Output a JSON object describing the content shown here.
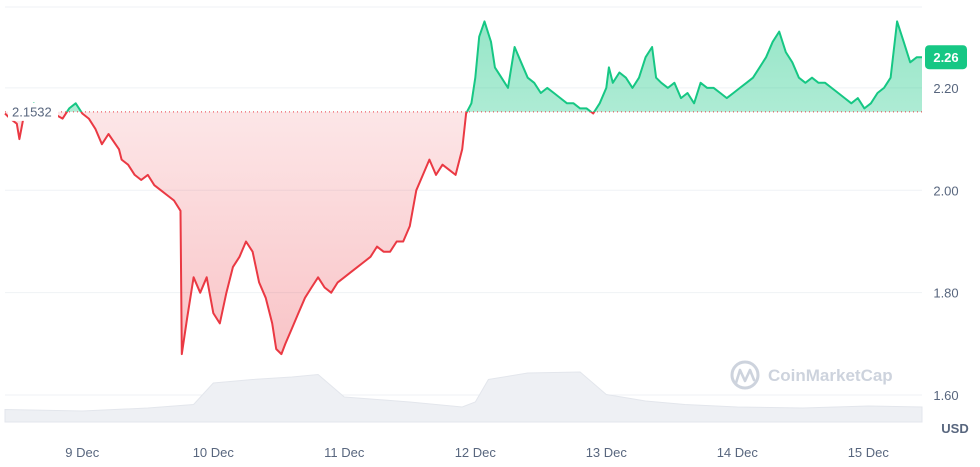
{
  "chart_data": {
    "type": "line",
    "baseline": 2.1532,
    "baseline_label": "2.1532",
    "current_value": 2.26,
    "current_label": "2.26",
    "currency_label": "USD",
    "watermark": "CoinMarketCap",
    "y_ticks": [
      {
        "value": 2.2,
        "label": "2.20"
      },
      {
        "value": 2.0,
        "label": "2.00"
      },
      {
        "value": 1.8,
        "label": "1.80"
      },
      {
        "value": 1.6,
        "label": "1.60"
      }
    ],
    "x_ticks": [
      {
        "day": 9,
        "label": "9 Dec"
      },
      {
        "day": 10,
        "label": "10 Dec"
      },
      {
        "day": 11,
        "label": "11 Dec"
      },
      {
        "day": 12,
        "label": "12 Dec"
      },
      {
        "day": 13,
        "label": "13 Dec"
      },
      {
        "day": 14,
        "label": "14 Dec"
      },
      {
        "day": 15,
        "label": "15 Dec"
      }
    ],
    "ylim": [
      1.52,
      2.36
    ],
    "x_range_days": [
      8.41,
      15.41
    ],
    "series": [
      {
        "points": [
          [
            8.41,
            2.15
          ],
          [
            8.45,
            2.14
          ],
          [
            8.5,
            2.13
          ],
          [
            8.52,
            2.1
          ],
          [
            8.55,
            2.14
          ],
          [
            8.6,
            2.16
          ],
          [
            8.63,
            2.17
          ],
          [
            8.7,
            2.14
          ],
          [
            8.78,
            2.15
          ],
          [
            8.85,
            2.14
          ],
          [
            8.9,
            2.16
          ],
          [
            8.95,
            2.17
          ],
          [
            9.0,
            2.15
          ],
          [
            9.05,
            2.14
          ],
          [
            9.1,
            2.12
          ],
          [
            9.15,
            2.09
          ],
          [
            9.2,
            2.11
          ],
          [
            9.28,
            2.08
          ],
          [
            9.3,
            2.06
          ],
          [
            9.35,
            2.05
          ],
          [
            9.4,
            2.03
          ],
          [
            9.45,
            2.02
          ],
          [
            9.5,
            2.03
          ],
          [
            9.55,
            2.01
          ],
          [
            9.6,
            2.0
          ],
          [
            9.65,
            1.99
          ],
          [
            9.7,
            1.98
          ],
          [
            9.75,
            1.96
          ],
          [
            9.76,
            1.68
          ],
          [
            9.8,
            1.75
          ],
          [
            9.85,
            1.83
          ],
          [
            9.9,
            1.8
          ],
          [
            9.95,
            1.83
          ],
          [
            10.0,
            1.76
          ],
          [
            10.05,
            1.74
          ],
          [
            10.1,
            1.8
          ],
          [
            10.15,
            1.85
          ],
          [
            10.2,
            1.87
          ],
          [
            10.25,
            1.9
          ],
          [
            10.3,
            1.88
          ],
          [
            10.35,
            1.82
          ],
          [
            10.4,
            1.79
          ],
          [
            10.45,
            1.74
          ],
          [
            10.48,
            1.69
          ],
          [
            10.52,
            1.68
          ],
          [
            10.55,
            1.7
          ],
          [
            10.6,
            1.73
          ],
          [
            10.65,
            1.76
          ],
          [
            10.7,
            1.79
          ],
          [
            10.75,
            1.81
          ],
          [
            10.8,
            1.83
          ],
          [
            10.85,
            1.81
          ],
          [
            10.9,
            1.8
          ],
          [
            10.95,
            1.82
          ],
          [
            11.0,
            1.83
          ],
          [
            11.05,
            1.84
          ],
          [
            11.1,
            1.85
          ],
          [
            11.15,
            1.86
          ],
          [
            11.2,
            1.87
          ],
          [
            11.25,
            1.89
          ],
          [
            11.3,
            1.88
          ],
          [
            11.35,
            1.88
          ],
          [
            11.4,
            1.9
          ],
          [
            11.45,
            1.9
          ],
          [
            11.5,
            1.93
          ],
          [
            11.55,
            2.0
          ],
          [
            11.6,
            2.03
          ],
          [
            11.65,
            2.06
          ],
          [
            11.7,
            2.03
          ],
          [
            11.75,
            2.05
          ],
          [
            11.8,
            2.04
          ],
          [
            11.85,
            2.03
          ],
          [
            11.9,
            2.08
          ],
          [
            11.93,
            2.15
          ],
          [
            11.97,
            2.17
          ],
          [
            12.0,
            2.22
          ],
          [
            12.03,
            2.3
          ],
          [
            12.07,
            2.33
          ],
          [
            12.12,
            2.29
          ],
          [
            12.15,
            2.24
          ],
          [
            12.2,
            2.22
          ],
          [
            12.25,
            2.2
          ],
          [
            12.3,
            2.28
          ],
          [
            12.35,
            2.25
          ],
          [
            12.4,
            2.22
          ],
          [
            12.45,
            2.21
          ],
          [
            12.5,
            2.19
          ],
          [
            12.55,
            2.2
          ],
          [
            12.6,
            2.19
          ],
          [
            12.65,
            2.18
          ],
          [
            12.7,
            2.17
          ],
          [
            12.75,
            2.17
          ],
          [
            12.8,
            2.16
          ],
          [
            12.85,
            2.16
          ],
          [
            12.9,
            2.15
          ],
          [
            12.95,
            2.17
          ],
          [
            13.0,
            2.2
          ],
          [
            13.02,
            2.24
          ],
          [
            13.05,
            2.21
          ],
          [
            13.1,
            2.23
          ],
          [
            13.15,
            2.22
          ],
          [
            13.2,
            2.2
          ],
          [
            13.25,
            2.22
          ],
          [
            13.3,
            2.26
          ],
          [
            13.35,
            2.28
          ],
          [
            13.38,
            2.22
          ],
          [
            13.42,
            2.21
          ],
          [
            13.47,
            2.2
          ],
          [
            13.52,
            2.21
          ],
          [
            13.57,
            2.18
          ],
          [
            13.62,
            2.19
          ],
          [
            13.67,
            2.17
          ],
          [
            13.72,
            2.21
          ],
          [
            13.77,
            2.2
          ],
          [
            13.82,
            2.2
          ],
          [
            13.87,
            2.19
          ],
          [
            13.92,
            2.18
          ],
          [
            13.97,
            2.19
          ],
          [
            14.02,
            2.2
          ],
          [
            14.07,
            2.21
          ],
          [
            14.12,
            2.22
          ],
          [
            14.17,
            2.24
          ],
          [
            14.22,
            2.26
          ],
          [
            14.27,
            2.29
          ],
          [
            14.32,
            2.31
          ],
          [
            14.37,
            2.27
          ],
          [
            14.42,
            2.25
          ],
          [
            14.47,
            2.22
          ],
          [
            14.52,
            2.21
          ],
          [
            14.57,
            2.22
          ],
          [
            14.62,
            2.21
          ],
          [
            14.67,
            2.21
          ],
          [
            14.72,
            2.2
          ],
          [
            14.77,
            2.19
          ],
          [
            14.82,
            2.18
          ],
          [
            14.87,
            2.17
          ],
          [
            14.92,
            2.18
          ],
          [
            14.97,
            2.16
          ],
          [
            15.02,
            2.17
          ],
          [
            15.07,
            2.19
          ],
          [
            15.12,
            2.2
          ],
          [
            15.17,
            2.22
          ],
          [
            15.22,
            2.33
          ],
          [
            15.27,
            2.29
          ],
          [
            15.32,
            2.25
          ],
          [
            15.37,
            2.26
          ],
          [
            15.41,
            2.26
          ]
        ]
      }
    ],
    "volume_profile": [
      [
        8.41,
        0.25
      ],
      [
        9.0,
        0.22
      ],
      [
        9.5,
        0.28
      ],
      [
        9.85,
        0.35
      ],
      [
        10.0,
        0.78
      ],
      [
        10.3,
        0.85
      ],
      [
        10.6,
        0.9
      ],
      [
        10.8,
        0.95
      ],
      [
        11.0,
        0.5
      ],
      [
        11.5,
        0.4
      ],
      [
        11.9,
        0.3
      ],
      [
        12.0,
        0.4
      ],
      [
        12.1,
        0.85
      ],
      [
        12.4,
        0.98
      ],
      [
        12.8,
        1.0
      ],
      [
        13.0,
        0.55
      ],
      [
        13.3,
        0.42
      ],
      [
        13.6,
        0.35
      ],
      [
        14.0,
        0.3
      ],
      [
        14.5,
        0.28
      ],
      [
        15.0,
        0.32
      ],
      [
        15.41,
        0.3
      ]
    ]
  }
}
